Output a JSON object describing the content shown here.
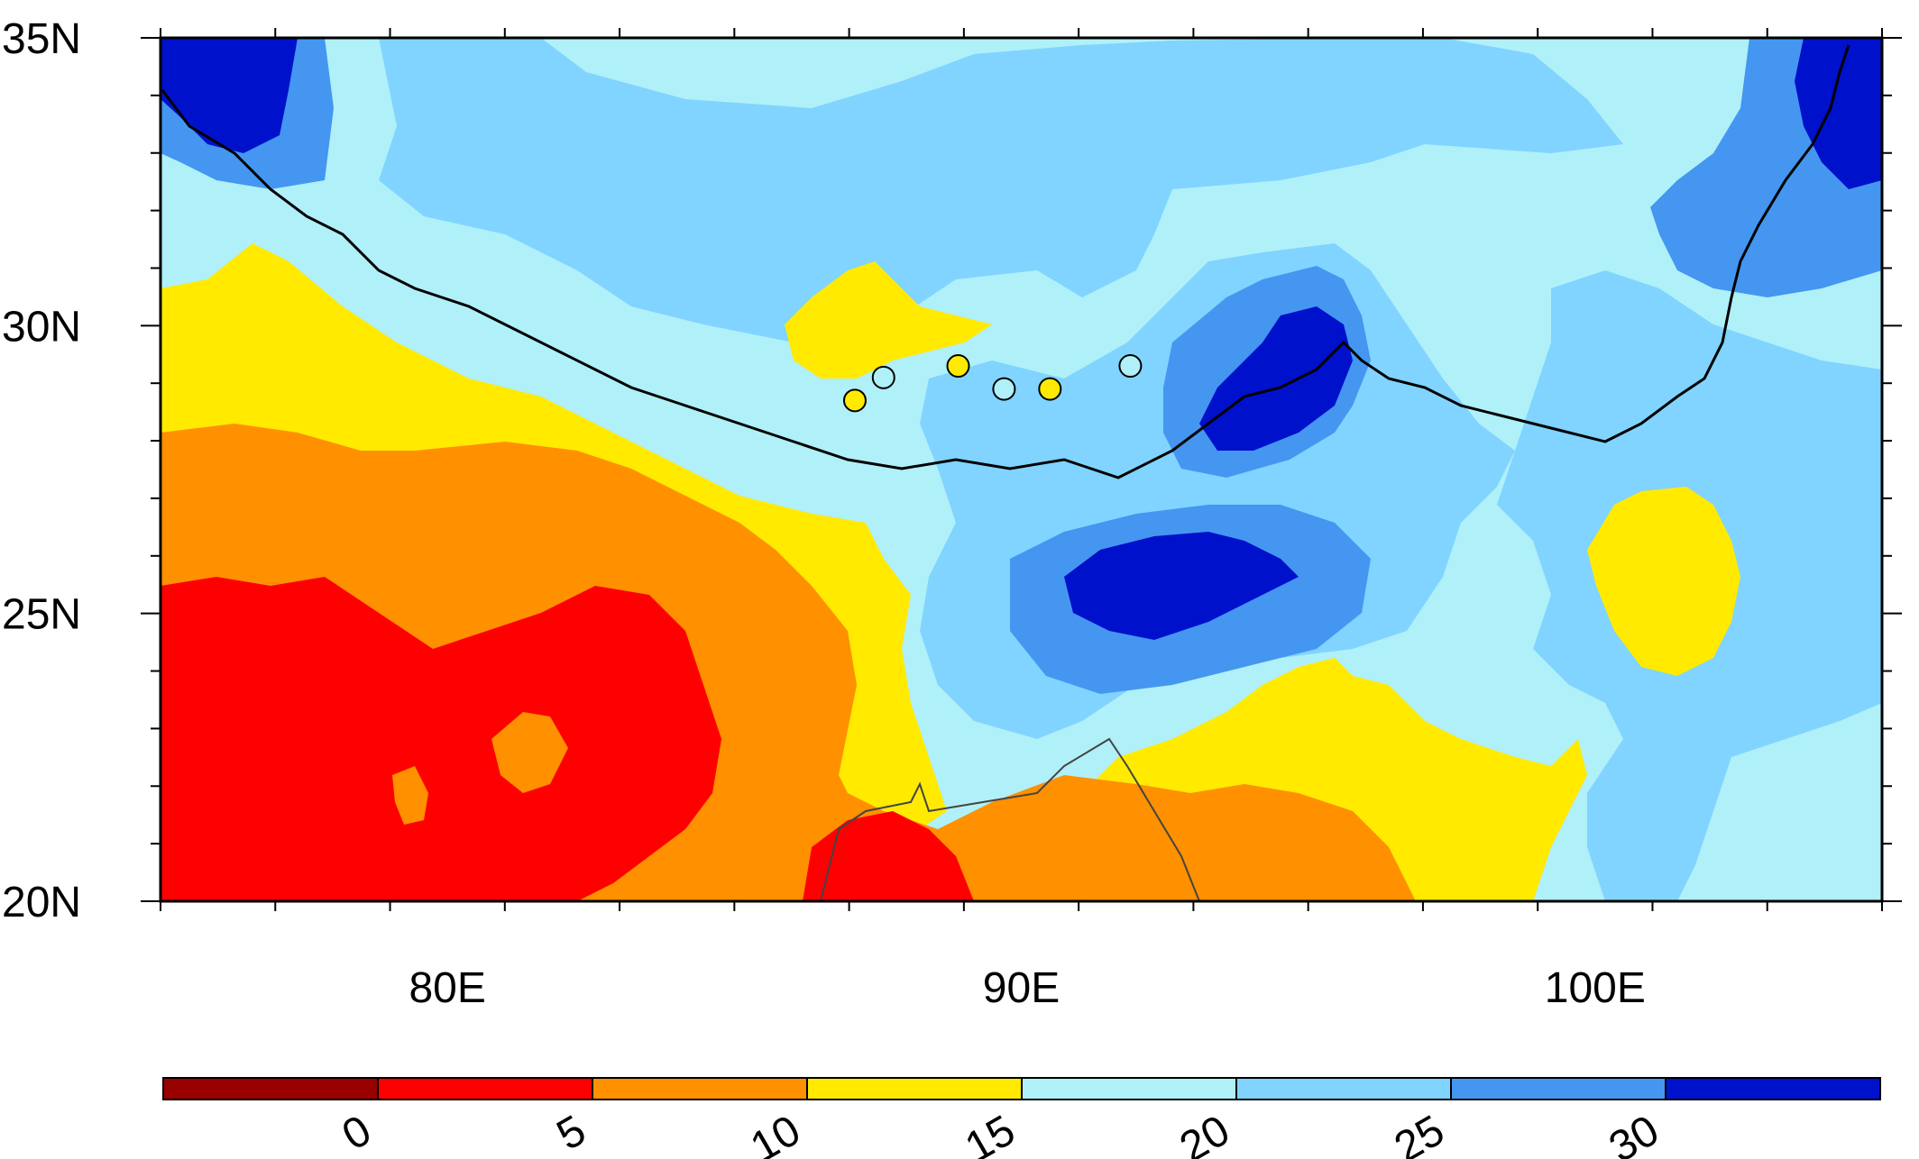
{
  "map": {
    "lon_range": [
      75,
      105
    ],
    "lat_range": [
      20,
      35
    ],
    "lat_labels": [
      "20N",
      "25N",
      "30N",
      "35N"
    ],
    "lat_values": [
      20,
      25,
      30,
      35
    ],
    "lon_labels": [
      "80E",
      "90E",
      "100E"
    ],
    "lon_values": [
      80,
      90,
      100
    ],
    "background_color": "#b0f0f8"
  },
  "colorbar": {
    "colors": [
      "#990000",
      "#ff0000",
      "#ff9000",
      "#ffea00",
      "#b0f0f8",
      "#80d4ff",
      "#4496f0",
      "#0011cc"
    ],
    "labels": [
      "0",
      "5",
      "10",
      "15",
      "20",
      "25",
      "30"
    ]
  },
  "stations": [
    {
      "lon": 87.1,
      "lat": 28.7,
      "color": "#ffea00"
    },
    {
      "lon": 87.6,
      "lat": 29.1,
      "color": "#b0f0f8"
    },
    {
      "lon": 88.9,
      "lat": 29.3,
      "color": "#ffea00"
    },
    {
      "lon": 89.7,
      "lat": 28.9,
      "color": "#b0f0f8"
    },
    {
      "lon": 90.5,
      "lat": 28.9,
      "color": "#ffea00"
    },
    {
      "lon": 91.9,
      "lat": 29.3,
      "color": "#b0f0f8"
    }
  ]
}
